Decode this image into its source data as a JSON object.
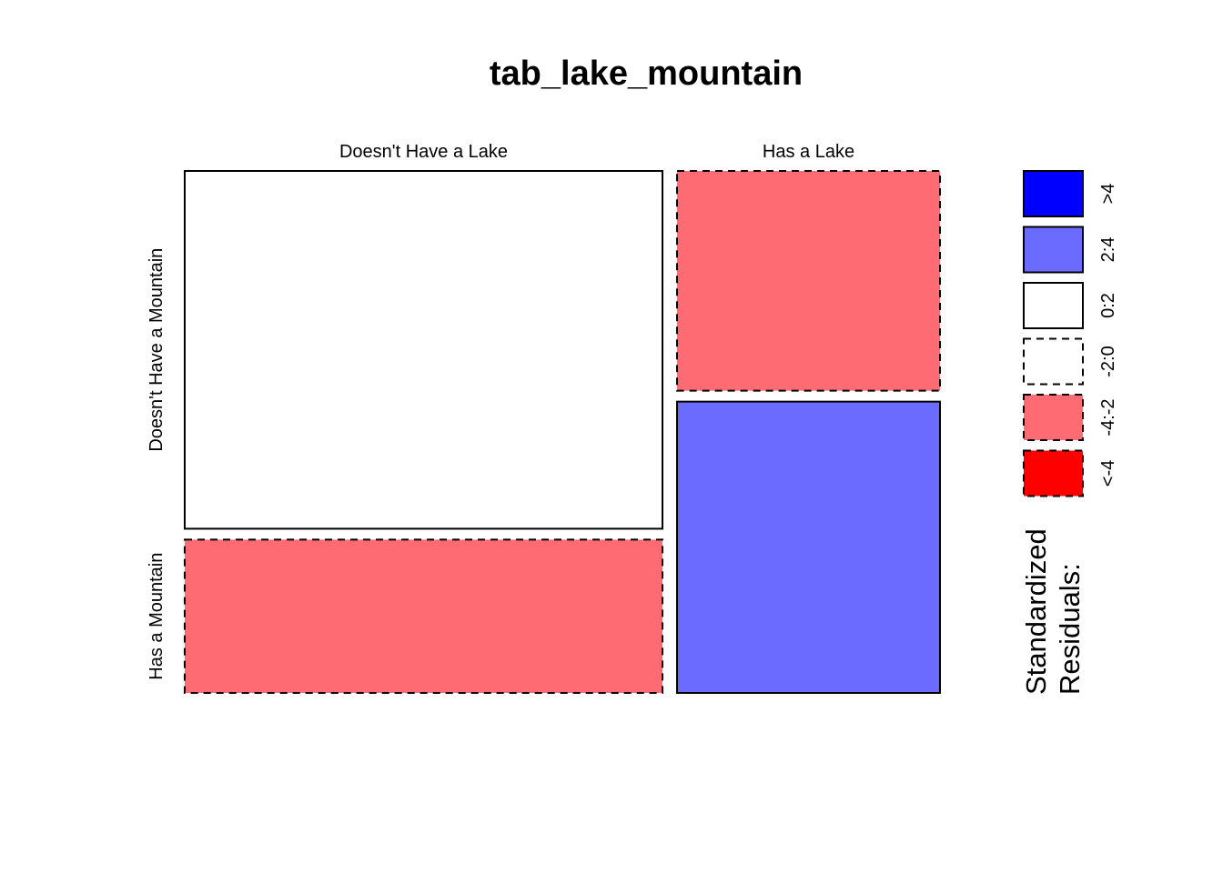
{
  "chart_data": {
    "type": "mosaic",
    "title": "tab_lake_mountain",
    "columns": [
      "Doesn't Have a Lake",
      "Has a Lake"
    ],
    "rows": [
      "Doesn't Have a Mountain",
      "Has a Mountain"
    ],
    "column_proportions": [
      0.645,
      0.355
    ],
    "cells": [
      {
        "column": "Doesn't Have a Lake",
        "row": "Doesn't Have a Mountain",
        "row_proportion": 0.7,
        "residual_bin": "0:2"
      },
      {
        "column": "Doesn't Have a Lake",
        "row": "Has a Mountain",
        "row_proportion": 0.3,
        "residual_bin": "-4:-2"
      },
      {
        "column": "Has a Lake",
        "row": "Doesn't Have a Mountain",
        "row_proportion": 0.43,
        "residual_bin": "-4:-2"
      },
      {
        "column": "Has a Lake",
        "row": "Has a Mountain",
        "row_proportion": 0.57,
        "residual_bin": "2:4"
      }
    ],
    "legend": {
      "title_lines": [
        "Standardized",
        "Residuals:"
      ],
      "entries": [
        {
          "label": ">4",
          "fill": "#0000ff",
          "dashed": false
        },
        {
          "label": "2:4",
          "fill": "#6b6bff",
          "dashed": false
        },
        {
          "label": "0:2",
          "fill": "#ffffff",
          "dashed": false
        },
        {
          "label": "-2:0",
          "fill": "#ffffff",
          "dashed": true
        },
        {
          "label": "-4:-2",
          "fill": "#ff6b72",
          "dashed": true
        },
        {
          "label": "<-4",
          "fill": "#ff0000",
          "dashed": true
        }
      ]
    }
  }
}
